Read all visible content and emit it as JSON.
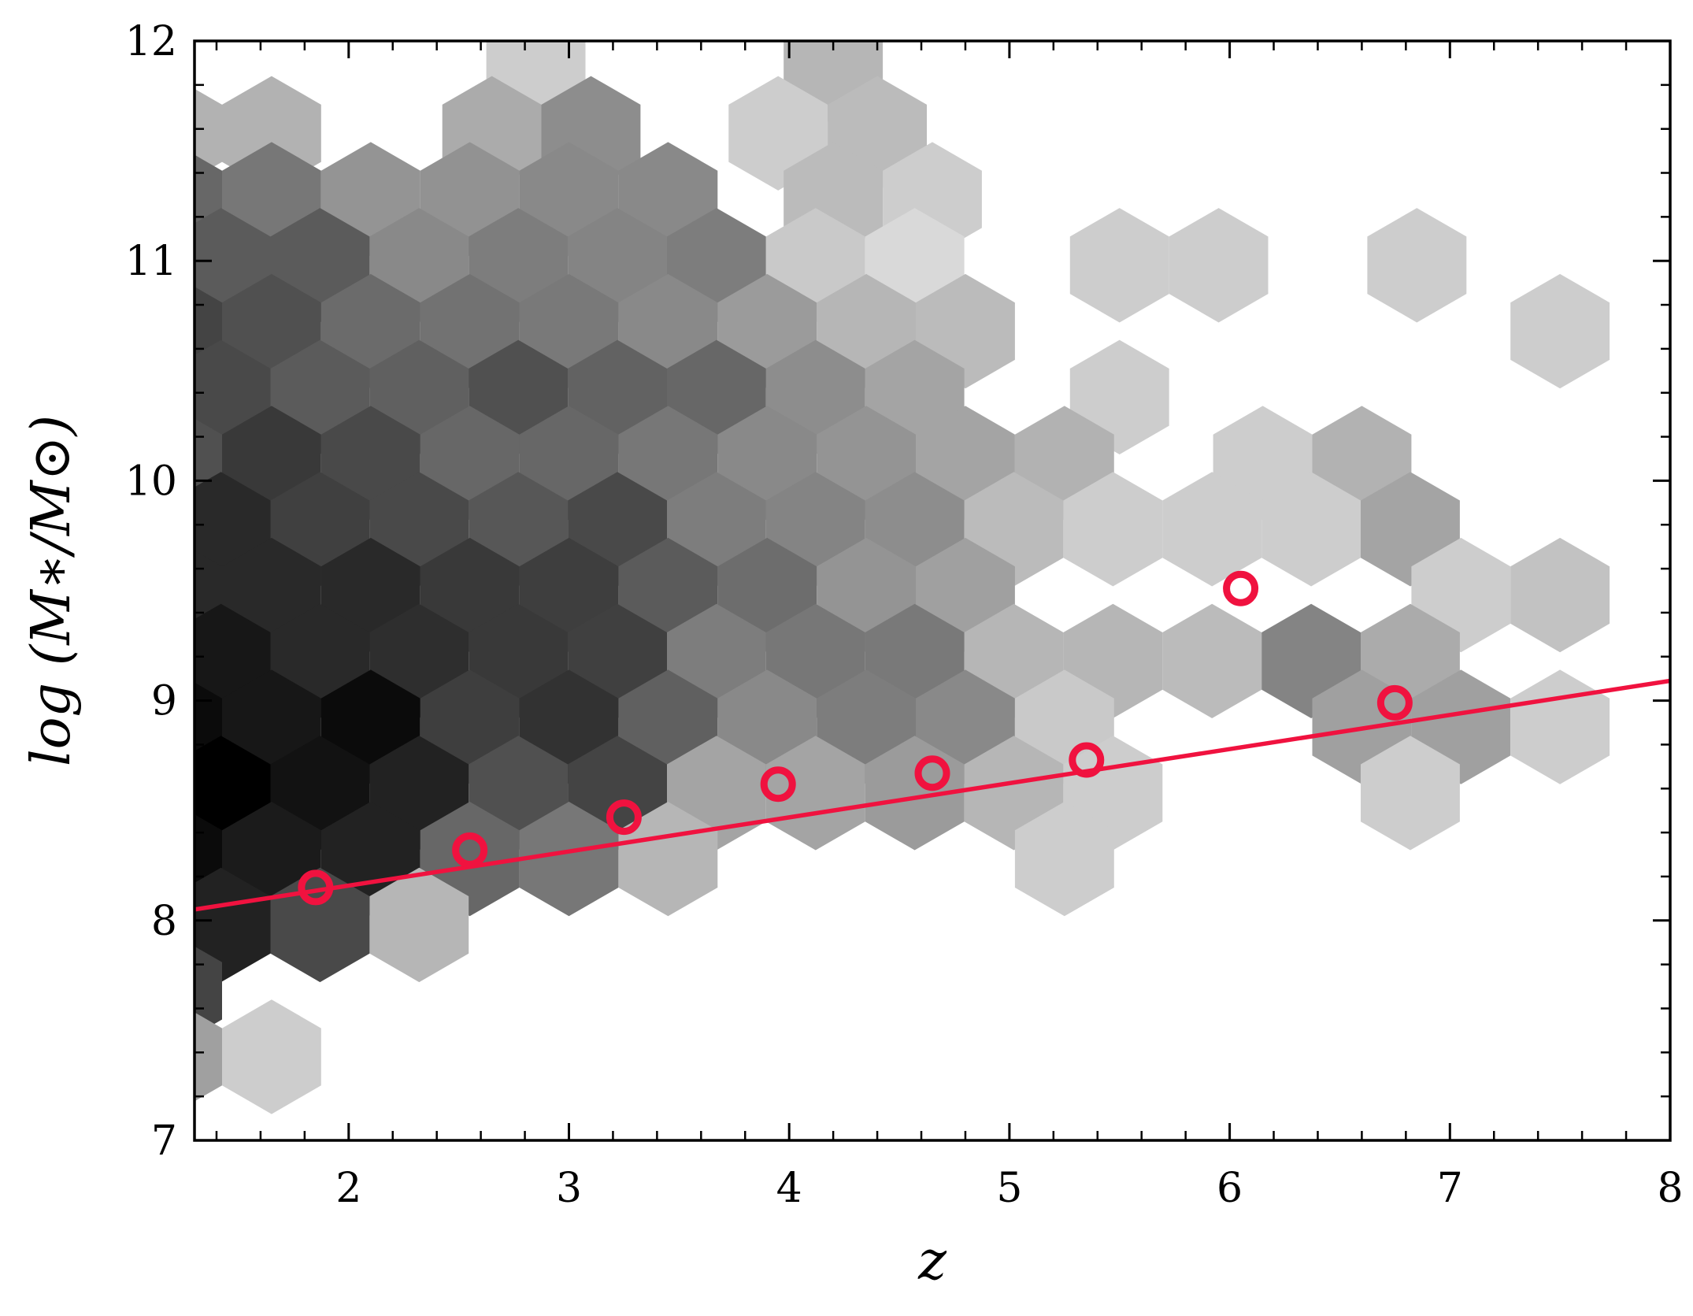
{
  "chart_data": {
    "type": "scatter",
    "title": "",
    "xlabel": "z",
    "ylabel": "log (M∗/M⊙)",
    "xlim": [
      1.3,
      8.0
    ],
    "ylim": [
      7.0,
      12.0
    ],
    "x_ticks": [
      "2",
      "3",
      "4",
      "5",
      "6",
      "7",
      "8"
    ],
    "y_ticks": [
      "7",
      "8",
      "9",
      "10",
      "11",
      "12"
    ],
    "grid": false,
    "legend": "none",
    "colors": {
      "fit_line": "#f0123f",
      "markers": "#f0123f",
      "density_dark": "#000000",
      "density_light": "#e4e4e4"
    },
    "hexbin": {
      "description_levels": "darker = more objects; shade level 0 (lightest) to 1 (darkest)",
      "grid_dx": 0.45,
      "grid_dy": 0.295,
      "bins": [
        [
          1.2,
          11.58,
          0.22
        ],
        [
          1.65,
          11.58,
          0.22
        ],
        [
          2.85,
          11.88,
          0.1
        ],
        [
          2.65,
          11.58,
          0.25
        ],
        [
          3.1,
          11.58,
          0.38
        ],
        [
          4.2,
          11.88,
          0.2
        ],
        [
          3.95,
          11.58,
          0.1
        ],
        [
          4.4,
          11.58,
          0.18
        ],
        [
          1.2,
          11.28,
          0.55
        ],
        [
          1.65,
          11.28,
          0.48
        ],
        [
          2.1,
          11.28,
          0.35
        ],
        [
          2.55,
          11.28,
          0.36
        ],
        [
          3.0,
          11.28,
          0.4
        ],
        [
          3.45,
          11.28,
          0.4
        ],
        [
          4.2,
          11.28,
          0.18
        ],
        [
          4.65,
          11.28,
          0.1
        ],
        [
          1.42,
          10.98,
          0.6
        ],
        [
          1.87,
          10.98,
          0.6
        ],
        [
          2.32,
          10.98,
          0.4
        ],
        [
          2.77,
          10.98,
          0.45
        ],
        [
          3.22,
          10.98,
          0.42
        ],
        [
          3.67,
          10.98,
          0.45
        ],
        [
          4.12,
          10.98,
          0.12
        ],
        [
          4.57,
          10.98,
          0.05
        ],
        [
          5.5,
          10.98,
          0.1
        ],
        [
          5.95,
          10.98,
          0.1
        ],
        [
          6.85,
          10.98,
          0.1
        ],
        [
          1.2,
          10.68,
          0.7
        ],
        [
          1.65,
          10.68,
          0.65
        ],
        [
          2.1,
          10.68,
          0.53
        ],
        [
          2.55,
          10.68,
          0.5
        ],
        [
          3.0,
          10.68,
          0.47
        ],
        [
          3.45,
          10.68,
          0.4
        ],
        [
          3.9,
          10.68,
          0.32
        ],
        [
          4.35,
          10.68,
          0.2
        ],
        [
          4.8,
          10.68,
          0.18
        ],
        [
          7.5,
          10.68,
          0.1
        ],
        [
          1.42,
          10.38,
          0.68
        ],
        [
          1.87,
          10.38,
          0.6
        ],
        [
          2.32,
          10.38,
          0.58
        ],
        [
          2.77,
          10.38,
          0.65
        ],
        [
          3.22,
          10.38,
          0.57
        ],
        [
          3.67,
          10.38,
          0.55
        ],
        [
          4.12,
          10.38,
          0.38
        ],
        [
          4.57,
          10.38,
          0.28
        ],
        [
          5.5,
          10.38,
          0.1
        ],
        [
          1.2,
          10.08,
          0.65
        ],
        [
          1.65,
          10.08,
          0.75
        ],
        [
          2.1,
          10.08,
          0.68
        ],
        [
          2.55,
          10.08,
          0.55
        ],
        [
          3.0,
          10.08,
          0.55
        ],
        [
          3.45,
          10.08,
          0.48
        ],
        [
          3.9,
          10.08,
          0.4
        ],
        [
          4.35,
          10.08,
          0.35
        ],
        [
          4.8,
          10.08,
          0.28
        ],
        [
          5.25,
          10.08,
          0.22
        ],
        [
          6.15,
          10.08,
          0.1
        ],
        [
          6.6,
          10.08,
          0.22
        ],
        [
          1.42,
          9.78,
          0.82
        ],
        [
          1.87,
          9.78,
          0.72
        ],
        [
          2.32,
          9.78,
          0.68
        ],
        [
          2.77,
          9.78,
          0.62
        ],
        [
          3.22,
          9.78,
          0.68
        ],
        [
          3.67,
          9.78,
          0.45
        ],
        [
          4.12,
          9.78,
          0.42
        ],
        [
          4.57,
          9.78,
          0.38
        ],
        [
          5.02,
          9.78,
          0.18
        ],
        [
          5.47,
          9.78,
          0.1
        ],
        [
          5.92,
          9.78,
          0.1
        ],
        [
          6.37,
          9.78,
          0.1
        ],
        [
          6.82,
          9.78,
          0.28
        ],
        [
          1.2,
          9.48,
          0.82
        ],
        [
          1.65,
          9.48,
          0.82
        ],
        [
          2.1,
          9.48,
          0.82
        ],
        [
          2.55,
          9.48,
          0.75
        ],
        [
          3.0,
          9.48,
          0.73
        ],
        [
          3.45,
          9.48,
          0.6
        ],
        [
          3.9,
          9.48,
          0.52
        ],
        [
          4.35,
          9.48,
          0.35
        ],
        [
          4.8,
          9.48,
          0.3
        ],
        [
          7.05,
          9.48,
          0.1
        ],
        [
          7.5,
          9.48,
          0.15
        ],
        [
          1.42,
          9.18,
          0.9
        ],
        [
          1.87,
          9.18,
          0.82
        ],
        [
          2.32,
          9.18,
          0.8
        ],
        [
          2.77,
          9.18,
          0.75
        ],
        [
          3.22,
          9.18,
          0.72
        ],
        [
          3.67,
          9.18,
          0.45
        ],
        [
          4.12,
          9.18,
          0.48
        ],
        [
          4.57,
          9.18,
          0.47
        ],
        [
          5.02,
          9.18,
          0.2
        ],
        [
          5.47,
          9.18,
          0.2
        ],
        [
          5.92,
          9.18,
          0.18
        ],
        [
          6.37,
          9.18,
          0.42
        ],
        [
          6.82,
          9.18,
          0.25
        ],
        [
          1.2,
          8.88,
          0.95
        ],
        [
          1.65,
          8.88,
          0.9
        ],
        [
          2.1,
          8.88,
          0.95
        ],
        [
          2.55,
          8.88,
          0.73
        ],
        [
          3.0,
          8.88,
          0.78
        ],
        [
          3.45,
          8.88,
          0.58
        ],
        [
          3.9,
          8.88,
          0.4
        ],
        [
          4.35,
          8.88,
          0.45
        ],
        [
          4.8,
          8.88,
          0.4
        ],
        [
          5.25,
          8.88,
          0.12
        ],
        [
          6.6,
          8.88,
          0.3
        ],
        [
          7.05,
          8.88,
          0.3
        ],
        [
          7.5,
          8.88,
          0.1
        ],
        [
          1.42,
          8.58,
          1.0
        ],
        [
          1.87,
          8.58,
          0.92
        ],
        [
          2.32,
          8.58,
          0.85
        ],
        [
          2.77,
          8.58,
          0.65
        ],
        [
          3.22,
          8.58,
          0.7
        ],
        [
          3.67,
          8.58,
          0.28
        ],
        [
          4.12,
          8.58,
          0.28
        ],
        [
          4.57,
          8.58,
          0.32
        ],
        [
          5.02,
          8.58,
          0.2
        ],
        [
          5.47,
          8.58,
          0.1
        ],
        [
          6.82,
          8.58,
          0.1
        ],
        [
          1.2,
          8.28,
          0.95
        ],
        [
          1.65,
          8.28,
          0.88
        ],
        [
          2.1,
          8.28,
          0.85
        ],
        [
          2.55,
          8.28,
          0.55
        ],
        [
          3.0,
          8.28,
          0.48
        ],
        [
          3.45,
          8.28,
          0.2
        ],
        [
          5.25,
          8.28,
          0.1
        ],
        [
          1.42,
          7.98,
          0.85
        ],
        [
          1.87,
          7.98,
          0.68
        ],
        [
          2.32,
          7.98,
          0.2
        ],
        [
          1.2,
          7.68,
          0.7
        ],
        [
          1.2,
          7.38,
          0.3
        ],
        [
          1.65,
          7.38,
          0.1
        ]
      ]
    },
    "series": [
      {
        "type": "scatter",
        "marker": "open-circle",
        "x": [
          1.85,
          2.55,
          3.25,
          3.95,
          4.65,
          5.35,
          6.05,
          6.75
        ],
        "y": [
          8.15,
          8.32,
          8.47,
          8.62,
          8.67,
          8.73,
          9.51,
          8.99
        ]
      },
      {
        "type": "line",
        "x": [
          1.3,
          8.0
        ],
        "y": [
          8.05,
          9.09
        ]
      }
    ]
  }
}
